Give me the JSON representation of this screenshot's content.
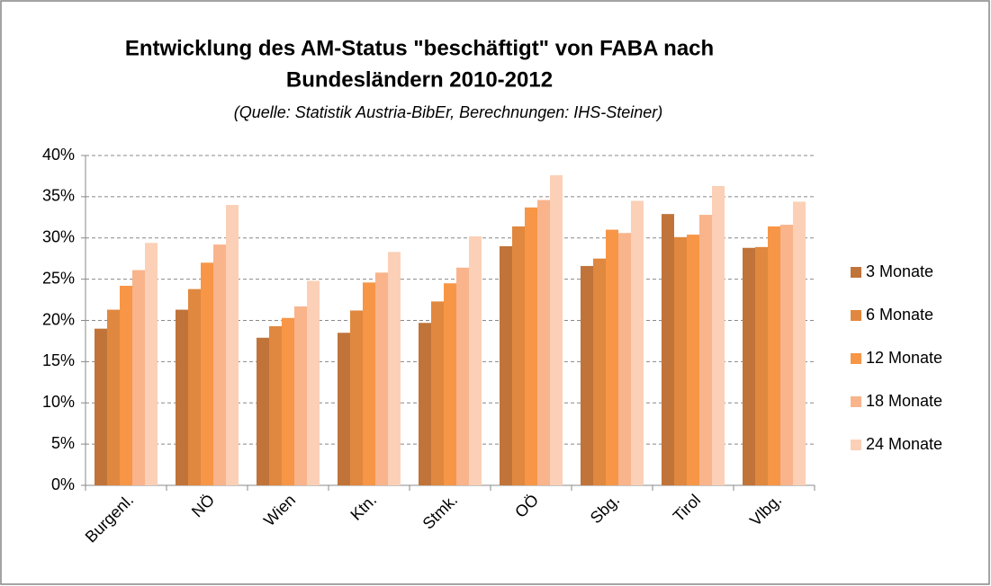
{
  "chart_data": {
    "type": "bar",
    "title": [
      "Entwicklung des AM-Status \"beschäftigt\" von FABA nach",
      "Bundesländern 2010-2012"
    ],
    "subtitle": "(Quelle: Statistik Austria-BibEr, Berechnungen: IHS-Steiner)",
    "categories": [
      "Burgenl.",
      "NÖ",
      "Wien",
      "Ktn.",
      "Stmk.",
      "OÖ",
      "Sbg.",
      "Tirol",
      "Vlbg."
    ],
    "series": [
      {
        "name": "3 Monate",
        "color": "#c0743a",
        "values": [
          19.0,
          21.3,
          17.9,
          18.5,
          19.7,
          29.0,
          26.6,
          32.9,
          28.8
        ]
      },
      {
        "name": "6 Monate",
        "color": "#e0883f",
        "values": [
          21.3,
          23.8,
          19.3,
          21.2,
          22.3,
          31.4,
          27.5,
          30.1,
          28.9
        ]
      },
      {
        "name": "12 Monate",
        "color": "#f79646",
        "values": [
          24.2,
          27.0,
          20.3,
          24.6,
          24.5,
          33.7,
          31.0,
          30.4,
          31.4
        ]
      },
      {
        "name": "18 Monate",
        "color": "#f9b48c",
        "values": [
          26.1,
          29.2,
          21.7,
          25.8,
          26.4,
          34.6,
          30.6,
          32.8,
          31.6
        ]
      },
      {
        "name": "24 Monate",
        "color": "#fbd0b6",
        "values": [
          29.4,
          34.0,
          24.8,
          28.3,
          30.2,
          37.6,
          34.5,
          36.3,
          34.4
        ]
      }
    ],
    "ylim": [
      0,
      40
    ],
    "yticks": [
      {
        "value": 0,
        "label": "0%"
      },
      {
        "value": 5,
        "label": "5%"
      },
      {
        "value": 10,
        "label": "10%"
      },
      {
        "value": 15,
        "label": "15%"
      },
      {
        "value": 20,
        "label": "20%"
      },
      {
        "value": 25,
        "label": "25%"
      },
      {
        "value": 30,
        "label": "30%"
      },
      {
        "value": 35,
        "label": "35%"
      },
      {
        "value": 40,
        "label": "40%"
      }
    ],
    "grid": true,
    "legend": "right"
  }
}
